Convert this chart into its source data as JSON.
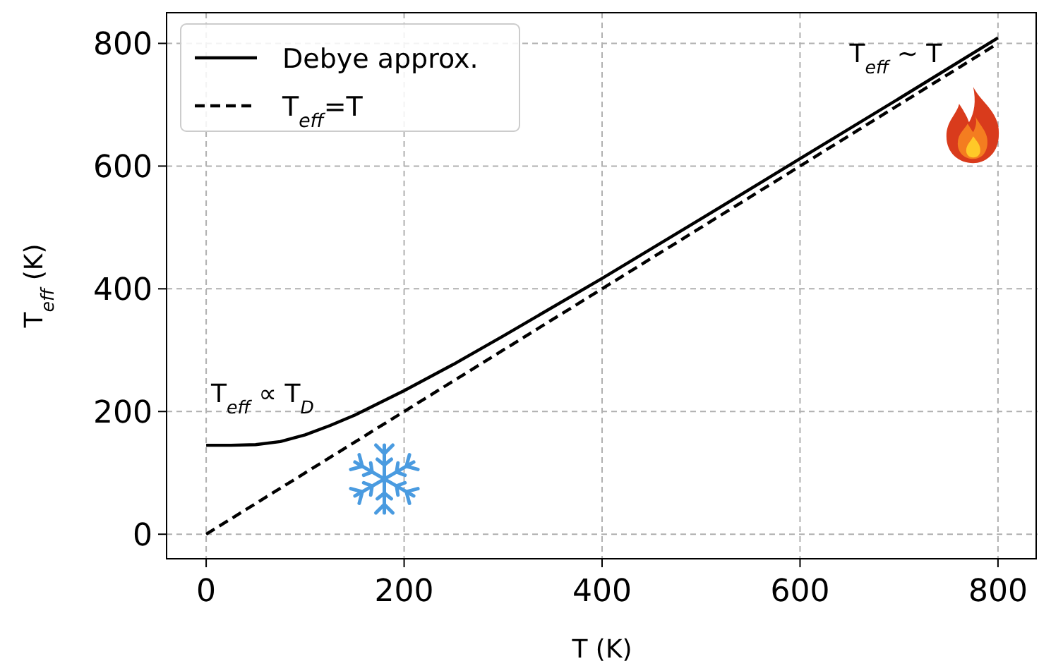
{
  "chart_data": {
    "type": "line",
    "xlabel": "T (K)",
    "ylabel": "T$_{eff}$ (K)",
    "xlim": [
      -40,
      840
    ],
    "ylim": [
      -40,
      850
    ],
    "xticks": [
      0,
      200,
      400,
      600,
      800
    ],
    "yticks": [
      0,
      200,
      400,
      600,
      800
    ],
    "grid": true,
    "legend": "top left",
    "series": [
      {
        "name": "Debye approx.",
        "color": "#000000",
        "line_style": "solid",
        "x": [
          0,
          25,
          50,
          75,
          100,
          125,
          150,
          200,
          250,
          300,
          400,
          500,
          600,
          700,
          800
        ],
        "values": [
          145,
          145,
          146,
          151,
          162,
          177,
          194,
          234,
          277,
          323,
          417,
          514,
          612,
          710,
          809
        ]
      },
      {
        "name": "T$_{eff}$=T",
        "color": "#000000",
        "line_style": "dashed",
        "x": [
          0,
          800
        ],
        "values": [
          0,
          800
        ]
      }
    ],
    "annotations": [
      "T$_{eff}$ ∝ T$_{D}$",
      "T$_{eff}$ ~ T"
    ]
  }
}
